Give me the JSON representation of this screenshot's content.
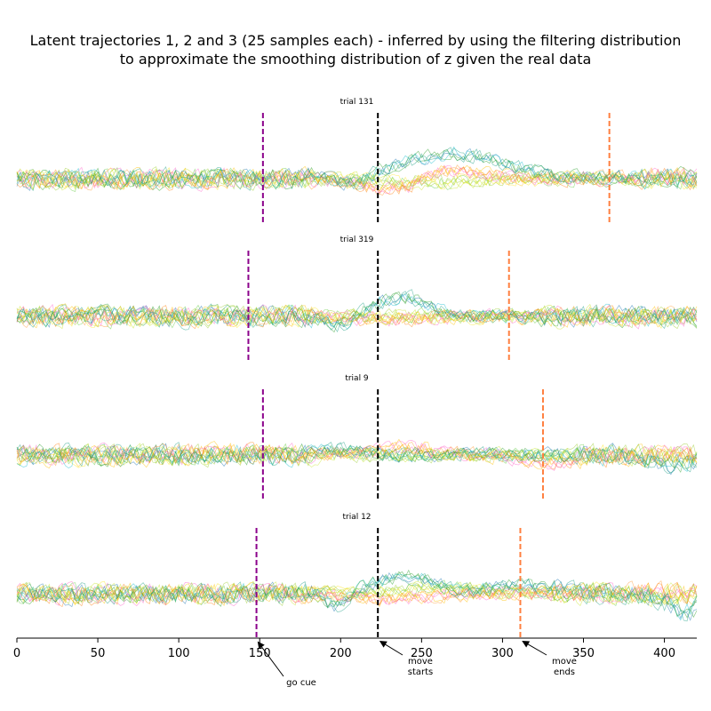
{
  "chart_data": {
    "type": "line",
    "title_lines": [
      "Latent trajectories 1, 2 and 3 (25 samples each) - inferred by using the filtering distribution",
      "to approximate the smoothing distribution of z given the real data"
    ],
    "xlim": [
      0,
      420
    ],
    "xticks": [
      "0",
      "50",
      "100",
      "150",
      "200",
      "250",
      "300",
      "350",
      "400"
    ],
    "xtick_values": [
      0,
      50,
      100,
      150,
      200,
      250,
      300,
      350,
      400
    ],
    "samples_per_trajectory": 25,
    "series_colors": {
      "trajectory_1": [
        "#1f77b4",
        "#17becf",
        "#2ca02c",
        "#1fa187"
      ],
      "trajectory_2": [
        "#ff7f0e",
        "#ffbf00",
        "#ff66cc",
        "#ff9933"
      ],
      "trajectory_3": [
        "#9acd32",
        "#c8e62e",
        "#66cc44",
        "#fde725"
      ]
    },
    "marker_colors": {
      "go_cue": "#8b008b",
      "move_start": "#000000",
      "move_end": "#ff7f3f"
    },
    "panels": [
      {
        "label": "trial 131",
        "go_cue": 152,
        "move_start": 223,
        "move_end": 366
      },
      {
        "label": "trial 319",
        "go_cue": 143,
        "move_start": 223,
        "move_end": 304
      },
      {
        "label": "trial 9",
        "go_cue": 152,
        "move_start": 223,
        "move_end": 325
      },
      {
        "label": "trial 12",
        "go_cue": 148,
        "move_start": 223,
        "move_end": 311
      }
    ],
    "annotations": [
      {
        "text_lines": [
          "go cue"
        ],
        "target_x": 148
      },
      {
        "text_lines": [
          "move",
          "starts"
        ],
        "target_x": 223
      },
      {
        "text_lines": [
          "move",
          "ends"
        ],
        "target_x": 311
      }
    ]
  }
}
